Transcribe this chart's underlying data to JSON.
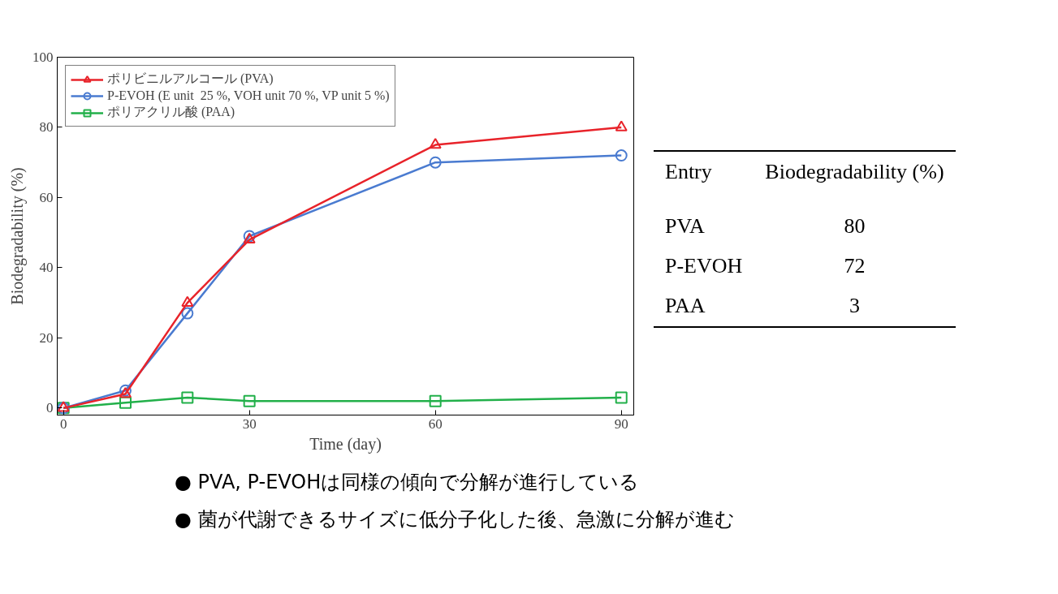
{
  "chart_data": {
    "type": "line",
    "xlabel": "Time (day)",
    "ylabel": "Biodegradability (%)",
    "x": [
      0,
      10,
      20,
      30,
      60,
      90
    ],
    "series": [
      {
        "name": "ポリビニルアルコール (PVA)",
        "color": "#e8232a",
        "marker": "triangle",
        "values": [
          0,
          4,
          30,
          48,
          75,
          80
        ]
      },
      {
        "name": "P-EVOH (E unit  25 %, VOH unit 70 %, VP unit 5 %)",
        "color": "#4a7bd0",
        "marker": "circle",
        "values": [
          0,
          5,
          27,
          49,
          70,
          72
        ]
      },
      {
        "name": "ポリアクリル酸 (PAA)",
        "color": "#22b04a",
        "marker": "square",
        "values": [
          0,
          1.5,
          3,
          2,
          2,
          3
        ]
      }
    ],
    "xlim": [
      -1,
      92
    ],
    "ylim": [
      -2,
      100
    ],
    "xticks": [
      0,
      30,
      60,
      90
    ],
    "yticks": [
      0,
      20,
      40,
      60,
      80,
      100
    ],
    "legend": "top left",
    "grid": false,
    "line_style": "solid",
    "annotations": [
      "Entry",
      "Biodegradability (%)",
      "PVA",
      "80",
      "P-EVOH",
      "72",
      "PAA",
      "3",
      "●  PVA, P-EVOHは同様の傾向で分解が進行している",
      "●  菌が代謝できるサイズに低分子化した後、急激に分解が進む"
    ]
  }
}
